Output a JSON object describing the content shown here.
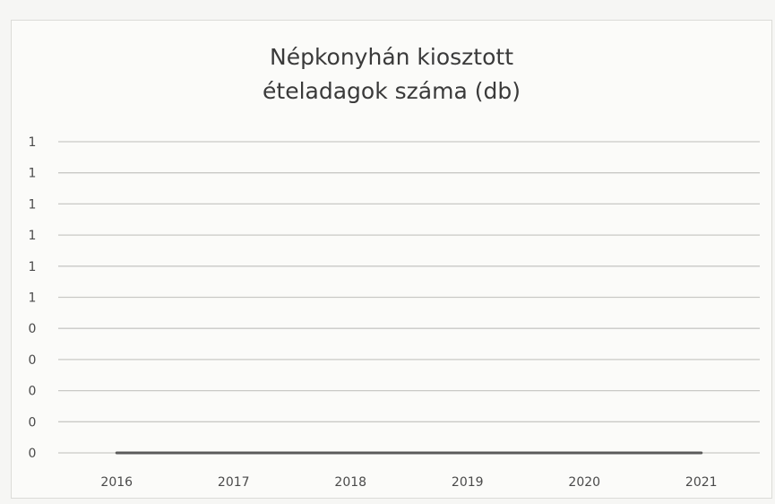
{
  "chart_data": {
    "type": "line",
    "title_lines": [
      "Népkonyhán kiosztott",
      "ételadagok száma (db)"
    ],
    "categories": [
      "2016",
      "2017",
      "2018",
      "2019",
      "2020",
      "2021"
    ],
    "y_tick_labels": [
      "0",
      "0",
      "0",
      "0",
      "0",
      "1",
      "1",
      "1",
      "1",
      "1",
      "1"
    ],
    "ylim": [
      0,
      1
    ],
    "series": [
      {
        "values": [
          0,
          0,
          0,
          0,
          0,
          0
        ]
      }
    ],
    "grid": true,
    "legend": "none",
    "colors": {
      "line": "#5b5b5b",
      "grid": "#c9c9c6",
      "text": "#4a4a4a",
      "title": "#3a3a3a"
    }
  }
}
